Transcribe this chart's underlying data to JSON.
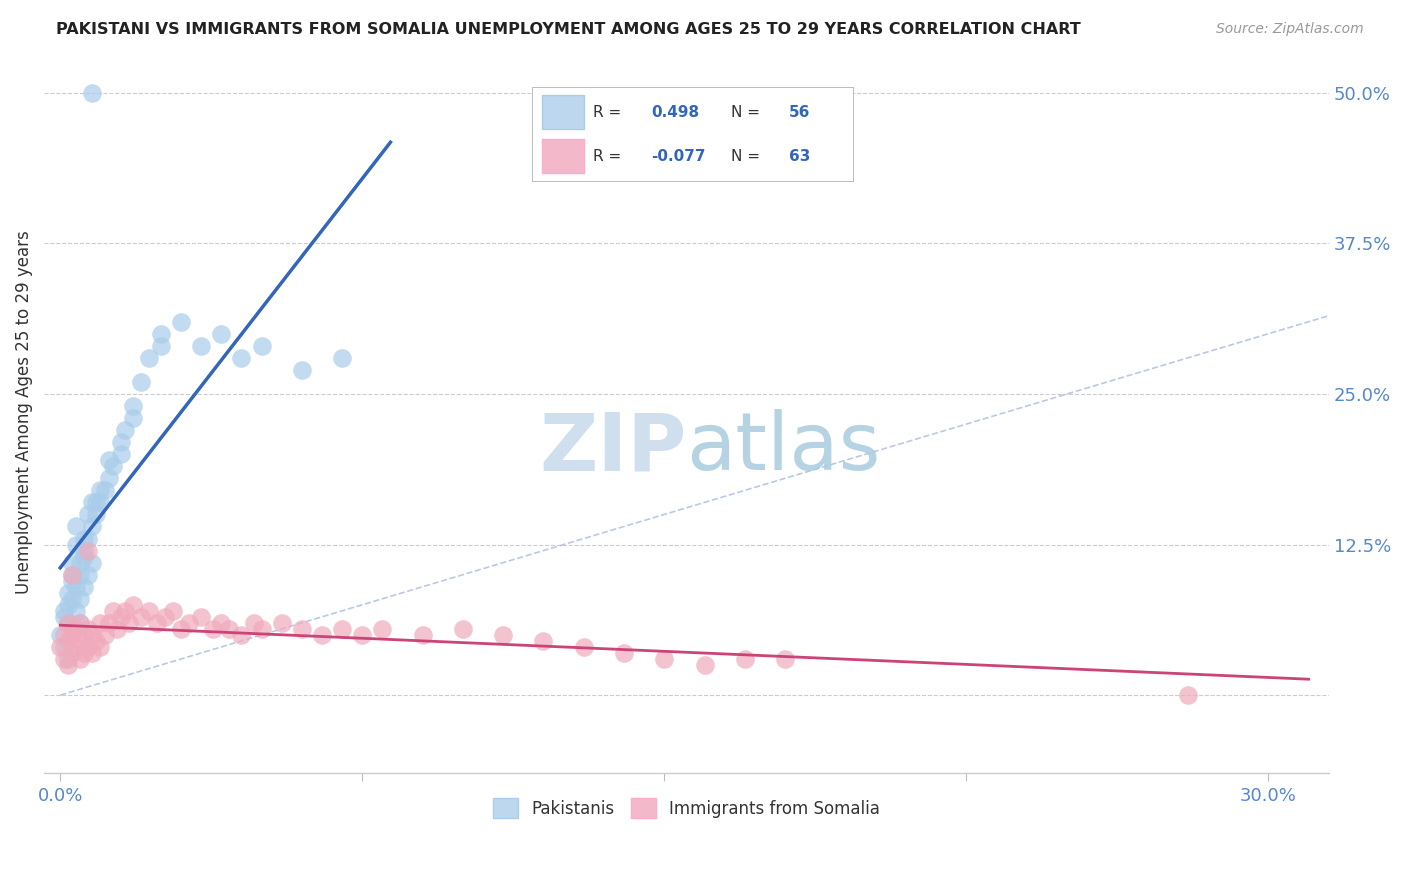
{
  "title": "PAKISTANI VS IMMIGRANTS FROM SOMALIA UNEMPLOYMENT AMONG AGES 25 TO 29 YEARS CORRELATION CHART",
  "source": "Source: ZipAtlas.com",
  "ylabel": "Unemployment Among Ages 25 to 29 years",
  "pakistani_R": 0.498,
  "pakistani_N": 56,
  "somalia_R": -0.077,
  "somalia_N": 63,
  "blue_color": "#A8CCEA",
  "pink_color": "#F0AABC",
  "blue_line_color": "#3366BB",
  "pink_line_color": "#CC4477",
  "legend_blue_color": "#BDD7EE",
  "legend_pink_color": "#F4B8CB",
  "grid_color": "#CCCCCC",
  "watermark_zip_color": "#C8DAEA",
  "watermark_atlas_color": "#AACCE0",
  "title_fontsize": 11.5,
  "tick_label_color": "#5588CC",
  "background_color": "#FFFFFF",
  "xmin": -0.004,
  "xmax": 0.315,
  "ymin": -0.065,
  "ymax": 0.535,
  "x_pak": [
    0.0,
    0.001,
    0.001,
    0.002,
    0.002,
    0.002,
    0.003,
    0.003,
    0.003,
    0.004,
    0.004,
    0.005,
    0.005,
    0.005,
    0.005,
    0.006,
    0.006,
    0.007,
    0.007,
    0.008,
    0.008,
    0.009,
    0.01,
    0.011,
    0.012,
    0.013,
    0.015,
    0.016,
    0.018,
    0.02,
    0.022,
    0.025,
    0.03,
    0.035,
    0.04,
    0.045,
    0.05,
    0.06,
    0.07,
    0.01,
    0.015,
    0.003,
    0.004,
    0.006,
    0.007,
    0.009,
    0.012,
    0.018,
    0.025,
    0.008,
    0.003,
    0.006,
    0.004,
    0.002,
    0.001,
    0.008
  ],
  "y_pak": [
    0.05,
    0.07,
    0.04,
    0.06,
    0.085,
    0.03,
    0.08,
    0.1,
    0.055,
    0.09,
    0.07,
    0.11,
    0.08,
    0.06,
    0.1,
    0.12,
    0.09,
    0.13,
    0.1,
    0.14,
    0.11,
    0.15,
    0.16,
    0.17,
    0.18,
    0.19,
    0.21,
    0.22,
    0.24,
    0.26,
    0.28,
    0.29,
    0.31,
    0.29,
    0.3,
    0.28,
    0.29,
    0.27,
    0.28,
    0.17,
    0.2,
    0.11,
    0.14,
    0.13,
    0.15,
    0.16,
    0.195,
    0.23,
    0.3,
    0.16,
    0.095,
    0.115,
    0.125,
    0.075,
    0.065,
    0.5
  ],
  "x_som": [
    0.0,
    0.001,
    0.001,
    0.002,
    0.002,
    0.002,
    0.003,
    0.003,
    0.004,
    0.004,
    0.005,
    0.005,
    0.005,
    0.006,
    0.006,
    0.007,
    0.007,
    0.008,
    0.008,
    0.009,
    0.01,
    0.01,
    0.011,
    0.012,
    0.013,
    0.014,
    0.015,
    0.016,
    0.017,
    0.018,
    0.02,
    0.022,
    0.024,
    0.026,
    0.028,
    0.03,
    0.032,
    0.035,
    0.038,
    0.04,
    0.042,
    0.045,
    0.048,
    0.05,
    0.055,
    0.06,
    0.065,
    0.07,
    0.075,
    0.08,
    0.09,
    0.1,
    0.11,
    0.12,
    0.13,
    0.14,
    0.15,
    0.16,
    0.17,
    0.18,
    0.28,
    0.003,
    0.007
  ],
  "y_som": [
    0.04,
    0.03,
    0.05,
    0.045,
    0.025,
    0.06,
    0.035,
    0.05,
    0.04,
    0.055,
    0.03,
    0.045,
    0.06,
    0.035,
    0.05,
    0.04,
    0.055,
    0.035,
    0.05,
    0.045,
    0.04,
    0.06,
    0.05,
    0.06,
    0.07,
    0.055,
    0.065,
    0.07,
    0.06,
    0.075,
    0.065,
    0.07,
    0.06,
    0.065,
    0.07,
    0.055,
    0.06,
    0.065,
    0.055,
    0.06,
    0.055,
    0.05,
    0.06,
    0.055,
    0.06,
    0.055,
    0.05,
    0.055,
    0.05,
    0.055,
    0.05,
    0.055,
    0.05,
    0.045,
    0.04,
    0.035,
    0.03,
    0.025,
    0.03,
    0.03,
    0.0,
    0.1,
    0.12
  ]
}
